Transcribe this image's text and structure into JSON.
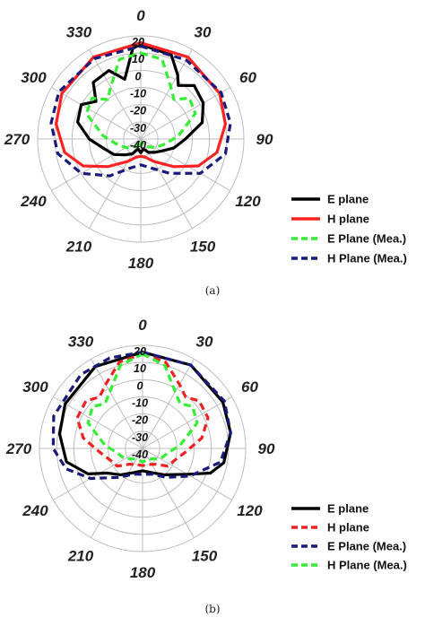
{
  "chart_data": [
    {
      "type": "polar-line",
      "caption": "(a)",
      "angle_labels": [
        "0",
        "30",
        "60",
        "90",
        "120",
        "150",
        "180",
        "210",
        "240",
        "270",
        "300",
        "330"
      ],
      "radial_labels": [
        "20",
        "10",
        "0",
        "-10",
        "-20",
        "-30",
        "-40"
      ],
      "rlim": [
        -40,
        20
      ],
      "legend_position": "bottom-right",
      "series": [
        {
          "name": "E plane",
          "color": "#000000",
          "dash": "solid",
          "points": [
            [
              0,
              15
            ],
            [
              20,
              12
            ],
            [
              30,
              3
            ],
            [
              35,
              -2
            ],
            [
              45,
              4
            ],
            [
              60,
              2
            ],
            [
              75,
              -3
            ],
            [
              90,
              -14
            ],
            [
              105,
              -20
            ],
            [
              120,
              -26
            ],
            [
              135,
              -29
            ],
            [
              150,
              -31
            ],
            [
              165,
              -34
            ],
            [
              180,
              -32
            ],
            [
              195,
              -34
            ],
            [
              210,
              -30
            ],
            [
              225,
              -27
            ],
            [
              240,
              -22
            ],
            [
              255,
              -18
            ],
            [
              270,
              -10
            ],
            [
              285,
              -2
            ],
            [
              300,
              0
            ],
            [
              310,
              -6
            ],
            [
              320,
              3
            ],
            [
              335,
              4
            ],
            [
              345,
              -4
            ],
            [
              355,
              13
            ]
          ]
        },
        {
          "name": "H plane",
          "color": "#ff2222",
          "dash": "solid",
          "points": [
            [
              0,
              16
            ],
            [
              30,
              15
            ],
            [
              60,
              13
            ],
            [
              80,
              10
            ],
            [
              100,
              5
            ],
            [
              115,
              -3
            ],
            [
              130,
              -15
            ],
            [
              150,
              -25
            ],
            [
              165,
              -29
            ],
            [
              180,
              -30
            ],
            [
              195,
              -29
            ],
            [
              210,
              -25
            ],
            [
              230,
              -15
            ],
            [
              245,
              -3
            ],
            [
              260,
              5
            ],
            [
              280,
              10
            ],
            [
              300,
              13
            ],
            [
              330,
              15
            ]
          ]
        },
        {
          "name": "E Plane (Mea.)",
          "color": "#33ee33",
          "dash": "dashed",
          "points": [
            [
              0,
              10
            ],
            [
              15,
              8
            ],
            [
              30,
              -5
            ],
            [
              40,
              -10
            ],
            [
              50,
              -3
            ],
            [
              65,
              -5
            ],
            [
              85,
              -18
            ],
            [
              100,
              -25
            ],
            [
              120,
              -30
            ],
            [
              150,
              -35
            ],
            [
              165,
              -38
            ],
            [
              180,
              -36
            ],
            [
              195,
              -38
            ],
            [
              210,
              -35
            ],
            [
              240,
              -30
            ],
            [
              260,
              -25
            ],
            [
              275,
              -18
            ],
            [
              295,
              -5
            ],
            [
              310,
              -3
            ],
            [
              320,
              -10
            ],
            [
              330,
              -5
            ],
            [
              345,
              8
            ]
          ]
        },
        {
          "name": "H Plane (Mea.)",
          "color": "#1a1a7a",
          "dash": "dashed",
          "points": [
            [
              0,
              14
            ],
            [
              30,
              13
            ],
            [
              60,
              14
            ],
            [
              80,
              13
            ],
            [
              100,
              10
            ],
            [
              120,
              0
            ],
            [
              140,
              -14
            ],
            [
              160,
              -22
            ],
            [
              180,
              -25
            ],
            [
              200,
              -22
            ],
            [
              220,
              -12
            ],
            [
              240,
              0
            ],
            [
              260,
              9
            ],
            [
              280,
              13
            ],
            [
              300,
              15
            ],
            [
              330,
              14
            ]
          ]
        }
      ]
    },
    {
      "type": "polar-line",
      "caption": "(b)",
      "angle_labels": [
        "0",
        "30",
        "60",
        "90",
        "120",
        "150",
        "180",
        "210",
        "240",
        "270",
        "300",
        "330"
      ],
      "radial_labels": [
        "20",
        "10",
        "0",
        "-10",
        "-20",
        "-30",
        "-40"
      ],
      "rlim": [
        -40,
        20
      ],
      "legend_position": "bottom-right",
      "series": [
        {
          "name": "E plane",
          "color": "#000000",
          "dash": "solid",
          "points": [
            [
              0,
              16
            ],
            [
              30,
              16
            ],
            [
              60,
              14
            ],
            [
              80,
              12
            ],
            [
              100,
              8
            ],
            [
              110,
              2
            ],
            [
              120,
              -10
            ],
            [
              140,
              -20
            ],
            [
              160,
              -25
            ],
            [
              180,
              -27
            ],
            [
              200,
              -25
            ],
            [
              220,
              -20
            ],
            [
              235,
              -15
            ],
            [
              245,
              -5
            ],
            [
              260,
              5
            ],
            [
              280,
              9
            ],
            [
              300,
              12
            ],
            [
              330,
              15
            ]
          ]
        },
        {
          "name": "H plane",
          "color": "#ee2222",
          "dash": "dashed",
          "points": [
            [
              0,
              15
            ],
            [
              15,
              12
            ],
            [
              30,
              3
            ],
            [
              40,
              -1
            ],
            [
              50,
              3
            ],
            [
              65,
              2
            ],
            [
              80,
              -5
            ],
            [
              95,
              -15
            ],
            [
              110,
              -20
            ],
            [
              125,
              -22
            ],
            [
              140,
              -28
            ],
            [
              160,
              -30
            ],
            [
              180,
              -30
            ],
            [
              200,
              -30
            ],
            [
              220,
              -28
            ],
            [
              235,
              -22
            ],
            [
              250,
              -20
            ],
            [
              265,
              -15
            ],
            [
              280,
              -5
            ],
            [
              295,
              2
            ],
            [
              310,
              3
            ],
            [
              320,
              -1
            ],
            [
              330,
              3
            ],
            [
              345,
              12
            ]
          ]
        },
        {
          "name": "E Plane (Mea.)",
          "color": "#1a1a7a",
          "dash": "dashed",
          "points": [
            [
              0,
              16
            ],
            [
              30,
              16
            ],
            [
              60,
              15
            ],
            [
              80,
              12
            ],
            [
              100,
              6
            ],
            [
              120,
              -8
            ],
            [
              140,
              -18
            ],
            [
              160,
              -24
            ],
            [
              180,
              -25
            ],
            [
              200,
              -24
            ],
            [
              220,
              -18
            ],
            [
              240,
              -5
            ],
            [
              255,
              6
            ],
            [
              270,
              12
            ],
            [
              290,
              15
            ],
            [
              320,
              16
            ],
            [
              340,
              16
            ]
          ]
        },
        {
          "name": "H Plane (Mea.)",
          "color": "#33ee33",
          "dash": "dashed",
          "points": [
            [
              0,
              15
            ],
            [
              15,
              10
            ],
            [
              30,
              -2
            ],
            [
              40,
              -6
            ],
            [
              50,
              -2
            ],
            [
              65,
              -5
            ],
            [
              85,
              -18
            ],
            [
              100,
              -25
            ],
            [
              120,
              -28
            ],
            [
              140,
              -32
            ],
            [
              160,
              -33
            ],
            [
              180,
              -32
            ],
            [
              200,
              -33
            ],
            [
              220,
              -32
            ],
            [
              240,
              -28
            ],
            [
              260,
              -25
            ],
            [
              275,
              -18
            ],
            [
              295,
              -5
            ],
            [
              310,
              -2
            ],
            [
              320,
              -6
            ],
            [
              330,
              -2
            ],
            [
              345,
              10
            ]
          ]
        }
      ]
    }
  ]
}
